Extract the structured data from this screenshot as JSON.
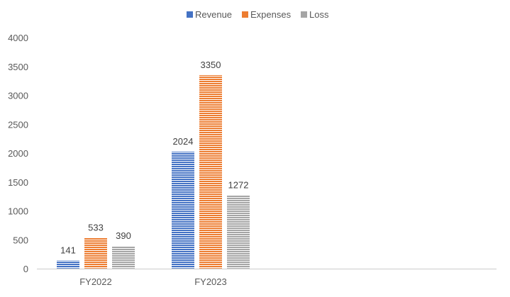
{
  "chart_data": {
    "type": "bar",
    "title": "",
    "xlabel": "",
    "ylabel": "",
    "categories": [
      "FY2022",
      "FY2023"
    ],
    "series": [
      {
        "name": "Revenue",
        "values": [
          141,
          2024
        ],
        "color": "#4472C4"
      },
      {
        "name": "Expenses",
        "values": [
          533,
          3350
        ],
        "color": "#ED7D31"
      },
      {
        "name": "Loss",
        "values": [
          390,
          1272
        ],
        "color": "#A5A5A5"
      }
    ],
    "ylim": [
      0,
      4000
    ],
    "yticks": [
      0,
      500,
      1000,
      1500,
      2000,
      2500,
      3000,
      3500,
      4000
    ],
    "legend_position": "top",
    "grid": false,
    "bar_pattern": "horizontal-stripes"
  }
}
